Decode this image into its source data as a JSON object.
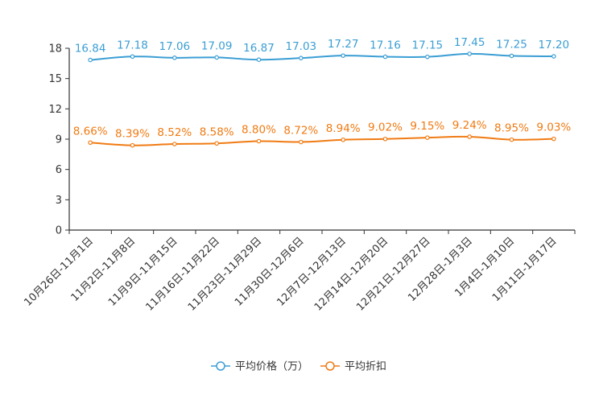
{
  "chart_data": {
    "type": "line",
    "title": "",
    "xlabel": "",
    "ylabel": "",
    "ylim": [
      0,
      18
    ],
    "yticks": [
      0,
      3,
      6,
      9,
      12,
      15,
      18
    ],
    "categories": [
      "10月26日-11月1日",
      "11月2日-11月8日",
      "11月9日-11月15日",
      "11月16日-11月22日",
      "11月23日-11月29日",
      "11月30日-12月6日",
      "12月7日-12月13日",
      "12月14日-12月20日",
      "12月21日-12月27日",
      "12月28日-1月3日",
      "1月4日-1月10日",
      "1月11日-1月17日"
    ],
    "series": [
      {
        "name": "平均价格（万）",
        "color": "#3b9ed4",
        "values": [
          16.84,
          17.18,
          17.06,
          17.09,
          16.87,
          17.03,
          17.27,
          17.16,
          17.15,
          17.45,
          17.25,
          17.2
        ],
        "labels": [
          "16.84",
          "17.18",
          "17.06",
          "17.09",
          "16.87",
          "17.03",
          "17.27",
          "17.16",
          "17.15",
          "17.45",
          "17.25",
          "17.20"
        ]
      },
      {
        "name": "平均折扣",
        "color": "#f07b13",
        "values": [
          8.66,
          8.39,
          8.52,
          8.58,
          8.8,
          8.72,
          8.94,
          9.02,
          9.15,
          9.24,
          8.95,
          9.03
        ],
        "labels": [
          "8.66%",
          "8.39%",
          "8.52%",
          "8.58%",
          "8.80%",
          "8.72%",
          "8.94%",
          "9.02%",
          "9.15%",
          "9.24%",
          "8.95%",
          "9.03%"
        ]
      }
    ],
    "legend_position": "bottom-center",
    "grid": false
  }
}
